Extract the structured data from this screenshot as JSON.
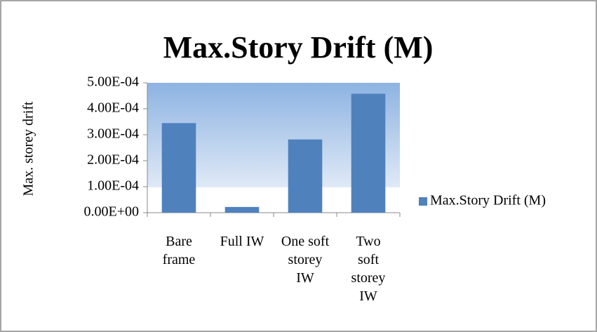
{
  "chart_data": {
    "type": "bar",
    "title": "Max.Story Drift (M)",
    "y_label": "Max. storey drift",
    "categories": [
      "Bare frame",
      "Full IW",
      "One soft storey IW",
      "Two soft storey IW"
    ],
    "series": [
      {
        "name": "Max.Story Drift (M)",
        "color": "#4f81bd",
        "values": [
          0.000345,
          2.2e-05,
          0.000282,
          0.000458
        ]
      }
    ],
    "ylim": [
      0,
      0.0005
    ],
    "yticks": [
      {
        "value": 0,
        "label": "0.00E+00"
      },
      {
        "value": 0.0001,
        "label": "1.00E-04"
      },
      {
        "value": 0.0002,
        "label": "2.00E-04"
      },
      {
        "value": 0.0003,
        "label": "3.00E-04"
      },
      {
        "value": 0.0004,
        "label": "4.00E-04"
      },
      {
        "value": 0.0005,
        "label": "5.00E-04"
      }
    ],
    "legend": "right"
  }
}
